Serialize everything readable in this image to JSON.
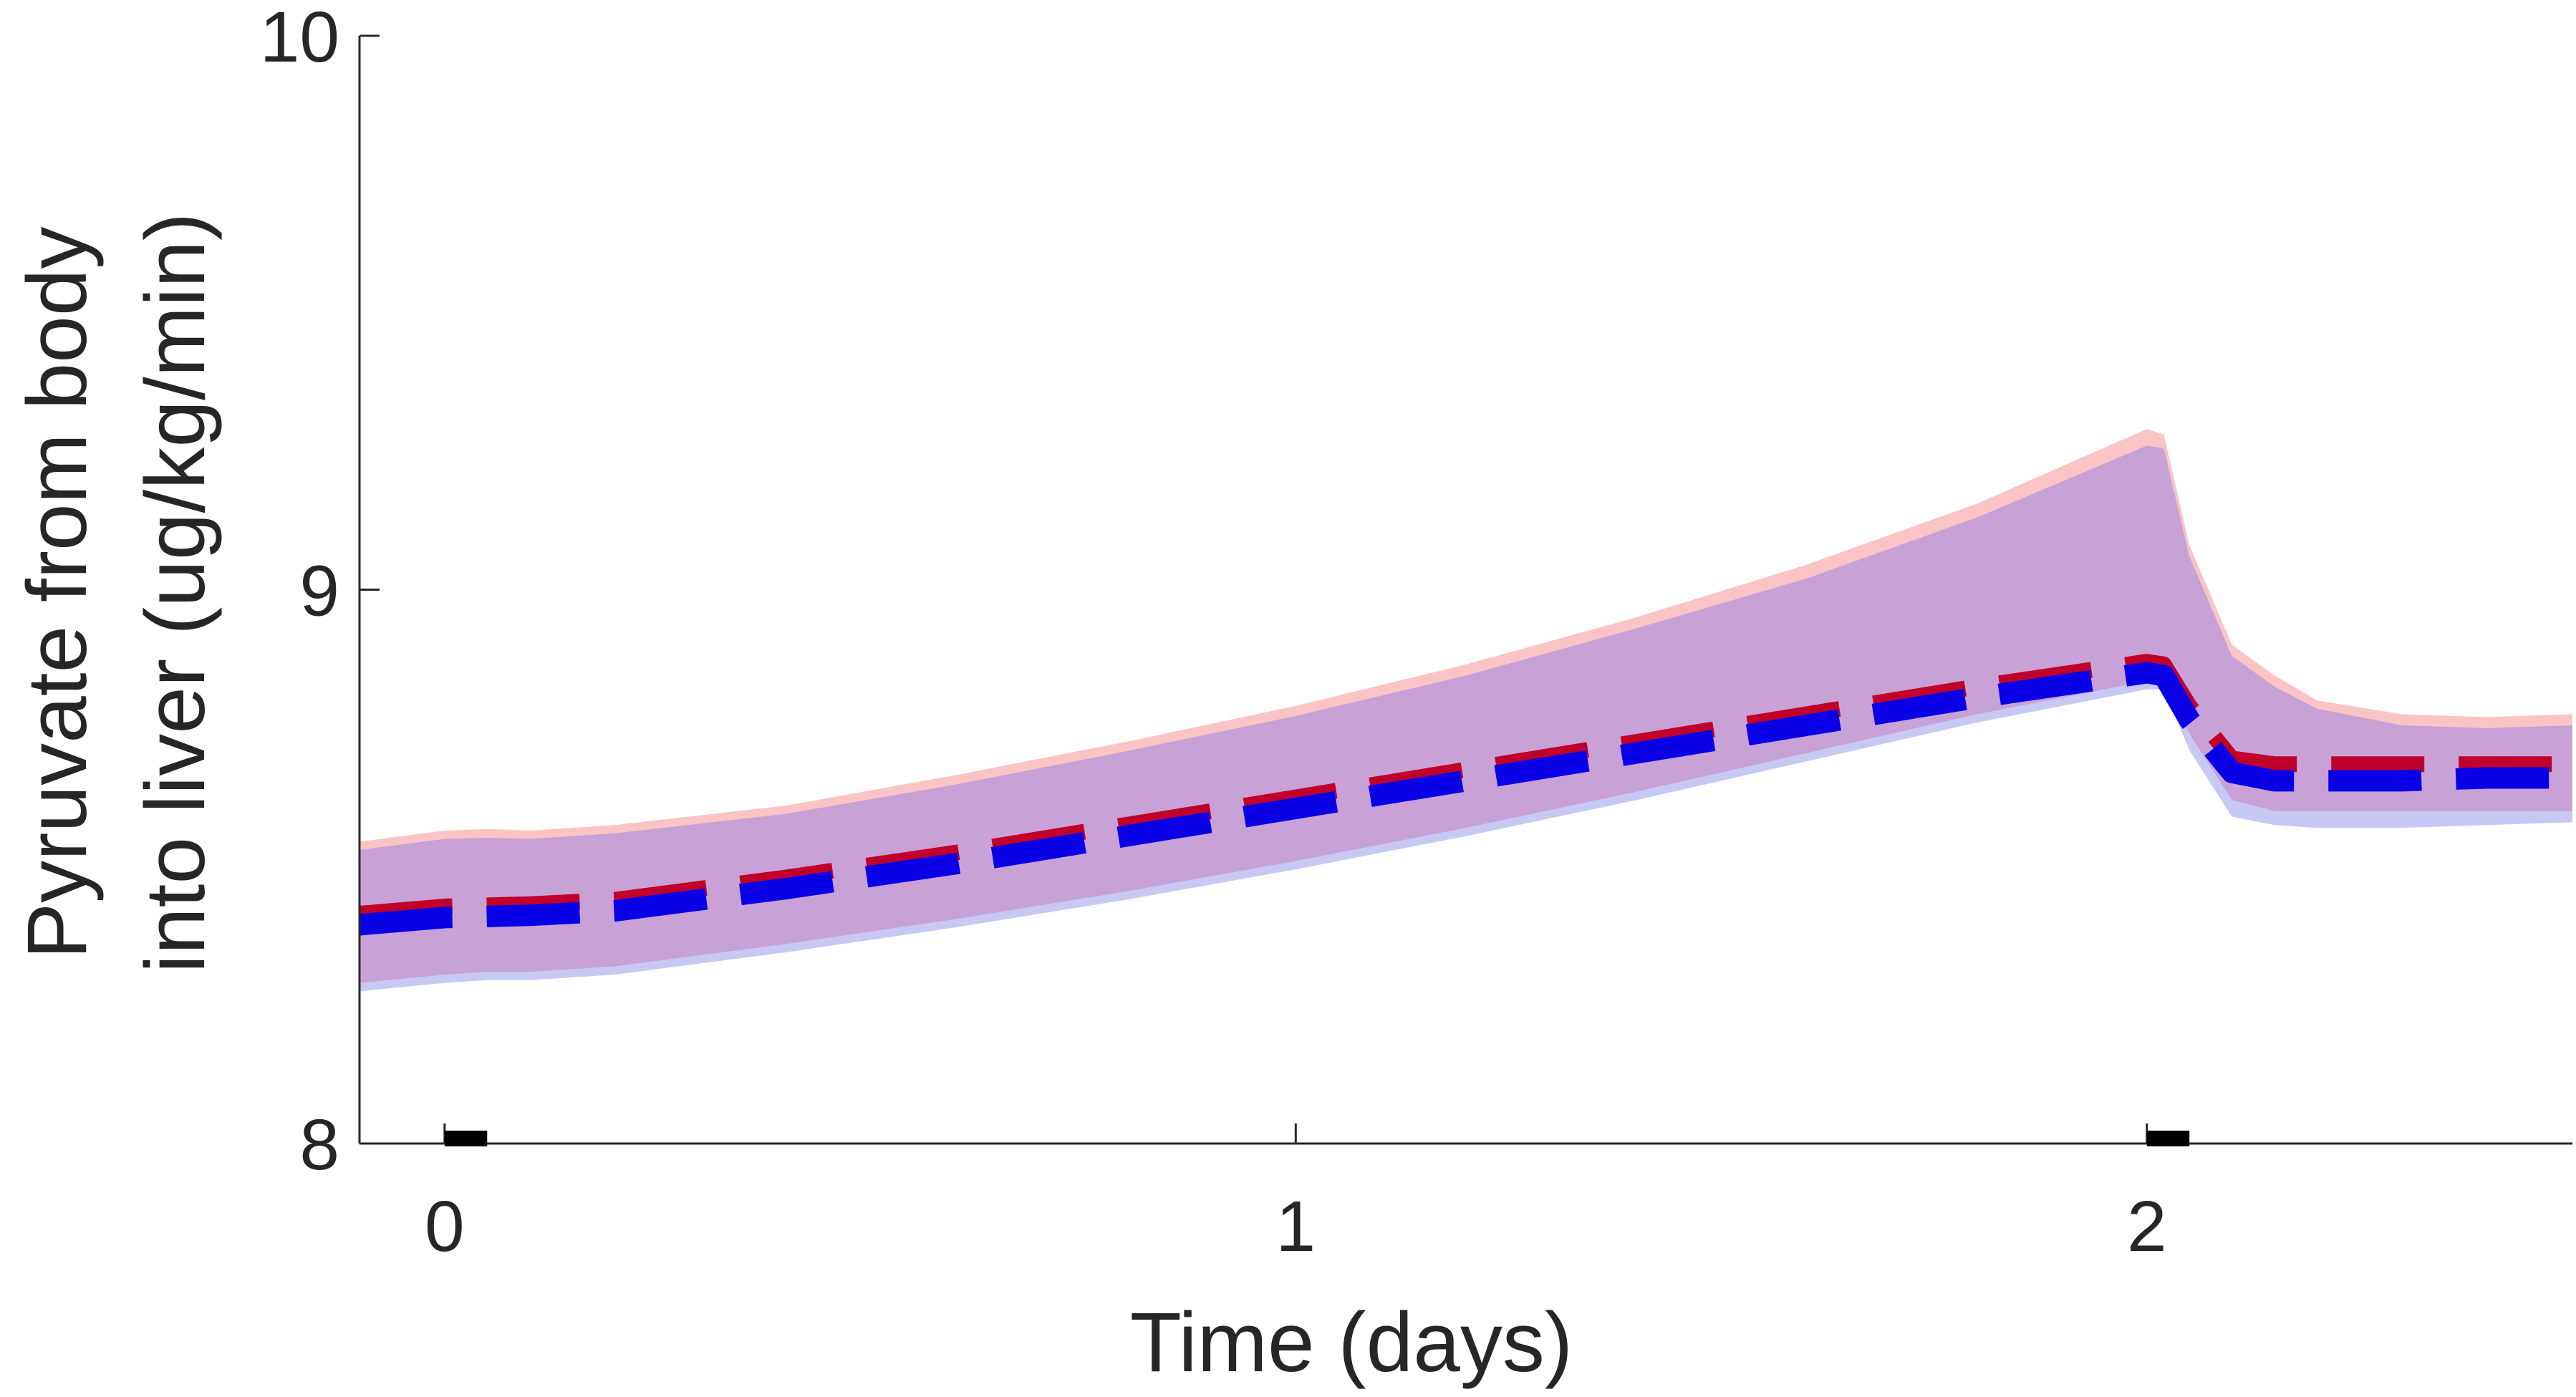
{
  "chart_data": {
    "type": "area",
    "title": "",
    "xlabel": "Time (days)",
    "ylabel_lines": [
      "Pyruvate from body",
      "into liver (ug/kg/min)"
    ],
    "xlim": [
      -0.1,
      2.5
    ],
    "ylim": [
      8,
      10
    ],
    "xticks": [
      0,
      1,
      2
    ],
    "yticks": [
      8,
      9,
      10
    ],
    "grid": false,
    "colors": {
      "red_band": "#fbc4c4",
      "blue_band": "#c8c8f5",
      "overlap_band": "#c8a2d6",
      "red_line": "#c0002a",
      "blue_line": "#0a00e6",
      "marker": "#000000"
    },
    "red_band": {
      "x": [
        -0.1,
        0.0,
        0.05,
        0.1,
        0.2,
        0.4,
        0.6,
        0.8,
        1.0,
        1.2,
        1.4,
        1.6,
        1.8,
        2.0,
        2.02,
        2.05,
        2.1,
        2.15,
        2.2,
        2.3,
        2.4,
        2.5
      ],
      "upper": [
        8.545,
        8.565,
        8.568,
        8.565,
        8.575,
        8.61,
        8.665,
        8.725,
        8.79,
        8.865,
        8.95,
        9.045,
        9.155,
        9.29,
        9.28,
        9.08,
        8.9,
        8.845,
        8.8,
        8.775,
        8.77,
        8.775
      ],
      "lower": [
        8.29,
        8.305,
        8.31,
        8.31,
        8.32,
        8.36,
        8.405,
        8.455,
        8.51,
        8.57,
        8.635,
        8.705,
        8.775,
        8.835,
        8.84,
        8.74,
        8.62,
        8.6,
        8.6,
        8.6,
        8.6,
        8.6
      ]
    },
    "blue_band": {
      "x": [
        -0.1,
        0.0,
        0.05,
        0.1,
        0.2,
        0.4,
        0.6,
        0.8,
        1.0,
        1.2,
        1.4,
        1.6,
        1.8,
        2.0,
        2.02,
        2.05,
        2.1,
        2.15,
        2.2,
        2.3,
        2.4,
        2.5
      ],
      "upper": [
        8.53,
        8.55,
        8.552,
        8.55,
        8.56,
        8.595,
        8.648,
        8.708,
        8.772,
        8.845,
        8.93,
        9.02,
        9.13,
        9.26,
        9.255,
        9.06,
        8.88,
        8.825,
        8.785,
        8.755,
        8.75,
        8.755
      ],
      "lower": [
        8.275,
        8.29,
        8.295,
        8.295,
        8.305,
        8.345,
        8.39,
        8.44,
        8.495,
        8.555,
        8.62,
        8.69,
        8.76,
        8.82,
        8.82,
        8.71,
        8.59,
        8.575,
        8.57,
        8.57,
        8.575,
        8.58
      ]
    },
    "series": [
      {
        "x": [
          -0.1,
          0.0,
          0.05,
          0.1,
          0.2,
          0.4,
          0.6,
          0.8,
          1.0,
          1.2,
          1.4,
          1.6,
          1.8,
          2.0,
          2.02,
          2.05,
          2.1,
          2.15,
          2.2,
          2.3,
          2.4,
          2.5
        ],
        "values": [
          8.415,
          8.428,
          8.43,
          8.432,
          8.44,
          8.48,
          8.525,
          8.575,
          8.625,
          8.675,
          8.725,
          8.775,
          8.825,
          8.87,
          8.865,
          8.79,
          8.695,
          8.685,
          8.685,
          8.685,
          8.685,
          8.685
        ]
      },
      {
        "x": [
          -0.1,
          0.0,
          0.05,
          0.1,
          0.2,
          0.4,
          0.6,
          0.8,
          1.0,
          1.2,
          1.4,
          1.6,
          1.8,
          2.0,
          2.02,
          2.05,
          2.1,
          2.15,
          2.2,
          2.3,
          2.4,
          2.5
        ],
        "values": [
          8.395,
          8.408,
          8.41,
          8.412,
          8.42,
          8.46,
          8.505,
          8.555,
          8.605,
          8.655,
          8.705,
          8.755,
          8.805,
          8.85,
          8.845,
          8.765,
          8.67,
          8.655,
          8.655,
          8.655,
          8.66,
          8.66
        ]
      }
    ],
    "time_markers": [
      {
        "x_start": 0.0,
        "x_end": 0.05
      },
      {
        "x_start": 2.0,
        "x_end": 2.05
      }
    ]
  }
}
